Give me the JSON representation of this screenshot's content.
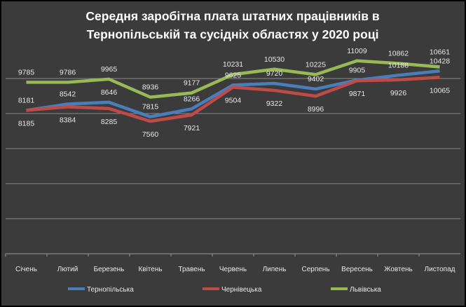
{
  "chart_data": {
    "type": "line",
    "title": [
      "Середня заробітна плата штатних працівників в",
      "Тернопільській та сусідніх областях у 2020 році"
    ],
    "categories": [
      "Січень",
      "Лютий",
      "Березень",
      "Квітень",
      "Травень",
      "Червень",
      "Липень",
      "Серпень",
      "Вересень",
      "Жовтень",
      "Листопад"
    ],
    "ylim": [
      0,
      12000
    ],
    "ygrid_step": 2000,
    "grid": true,
    "y_tick_labels_shown": false,
    "legend_placement": "bottom",
    "data_labels": true,
    "series": [
      {
        "name": "Тернопільська",
        "color": "#4a7ebb",
        "label_pos": "above",
        "values": [
          8181,
          8542,
          8646,
          7815,
          8266,
          9625,
          9720,
          9402,
          9905,
          10188,
          10428
        ]
      },
      {
        "name": "Чернівецька",
        "color": "#be4b48",
        "label_pos": "below",
        "values": [
          8185,
          8384,
          8285,
          7560,
          7921,
          9504,
          9322,
          8996,
          9871,
          9926,
          10065
        ]
      },
      {
        "name": "Львівська",
        "color": "#98b954",
        "label_pos": "above",
        "values": [
          9785,
          9786,
          9965,
          8936,
          9177,
          10231,
          10530,
          10225,
          11009,
          10862,
          10661
        ]
      }
    ]
  }
}
